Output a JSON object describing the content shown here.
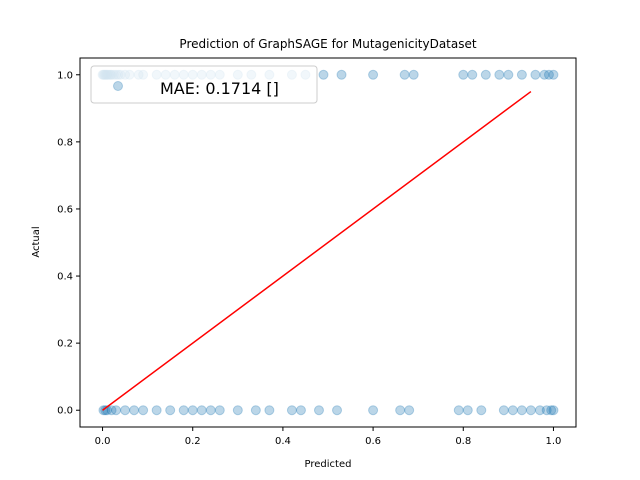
{
  "chart_data": {
    "type": "scatter",
    "title": "Prediction of GraphSAGE for MutagenicityDataset",
    "xlabel": "Predicted",
    "ylabel": "Actual",
    "xlim": [
      -0.05,
      1.05
    ],
    "ylim": [
      -0.05,
      1.05
    ],
    "xticks": [
      "0.0",
      "0.2",
      "0.4",
      "0.6",
      "0.8",
      "1.0"
    ],
    "yticks": [
      "0.0",
      "0.2",
      "0.4",
      "0.6",
      "0.8",
      "1.0"
    ],
    "grid": false,
    "legend": {
      "position": "top-left",
      "label": "MAE: 0.1714 []"
    },
    "colors": {
      "points": "#1f77b4",
      "line": "#ff0000"
    },
    "point_alpha": 0.3,
    "series": [
      {
        "kind": "points",
        "x": [
          0.0,
          0.002,
          0.004,
          0.006,
          0.008,
          0.01,
          0.012,
          0.015,
          0.018,
          0.02,
          0.025,
          0.03,
          0.035,
          0.04,
          0.05,
          0.06,
          0.08,
          0.09,
          0.12,
          0.14,
          0.16,
          0.18,
          0.2,
          0.22,
          0.24,
          0.26,
          0.3,
          0.33,
          0.37,
          0.42,
          0.45,
          0.49,
          0.53,
          0.6,
          0.67,
          0.69,
          0.8,
          0.82,
          0.85,
          0.88,
          0.9,
          0.93,
          0.96,
          0.98,
          0.99,
          1.0,
          0.002,
          0.006,
          0.01,
          0.02,
          0.03,
          0.05,
          0.07,
          0.09,
          0.12,
          0.15,
          0.18,
          0.2,
          0.22,
          0.24,
          0.26,
          0.3,
          0.34,
          0.37,
          0.42,
          0.44,
          0.48,
          0.52,
          0.6,
          0.66,
          0.68,
          0.79,
          0.81,
          0.84,
          0.89,
          0.91,
          0.93,
          0.95,
          0.97,
          0.985,
          0.995,
          1.0
        ],
        "y": [
          1,
          1,
          1,
          1,
          1,
          1,
          1,
          1,
          1,
          1,
          1,
          1,
          1,
          1,
          1,
          1,
          1,
          1,
          1,
          1,
          1,
          1,
          1,
          1,
          1,
          1,
          1,
          1,
          1,
          1,
          1,
          1,
          1,
          1,
          1,
          1,
          1,
          1,
          1,
          1,
          1,
          1,
          1,
          1,
          1,
          1,
          0,
          0,
          0,
          0,
          0,
          0,
          0,
          0,
          0,
          0,
          0,
          0,
          0,
          0,
          0,
          0,
          0,
          0,
          0,
          0,
          0,
          0,
          0,
          0,
          0,
          0,
          0,
          0,
          0,
          0,
          0,
          0,
          0,
          0,
          0,
          0
        ]
      },
      {
        "kind": "line",
        "x": [
          0.0,
          0.95
        ],
        "y": [
          0.0,
          0.95
        ]
      }
    ]
  }
}
